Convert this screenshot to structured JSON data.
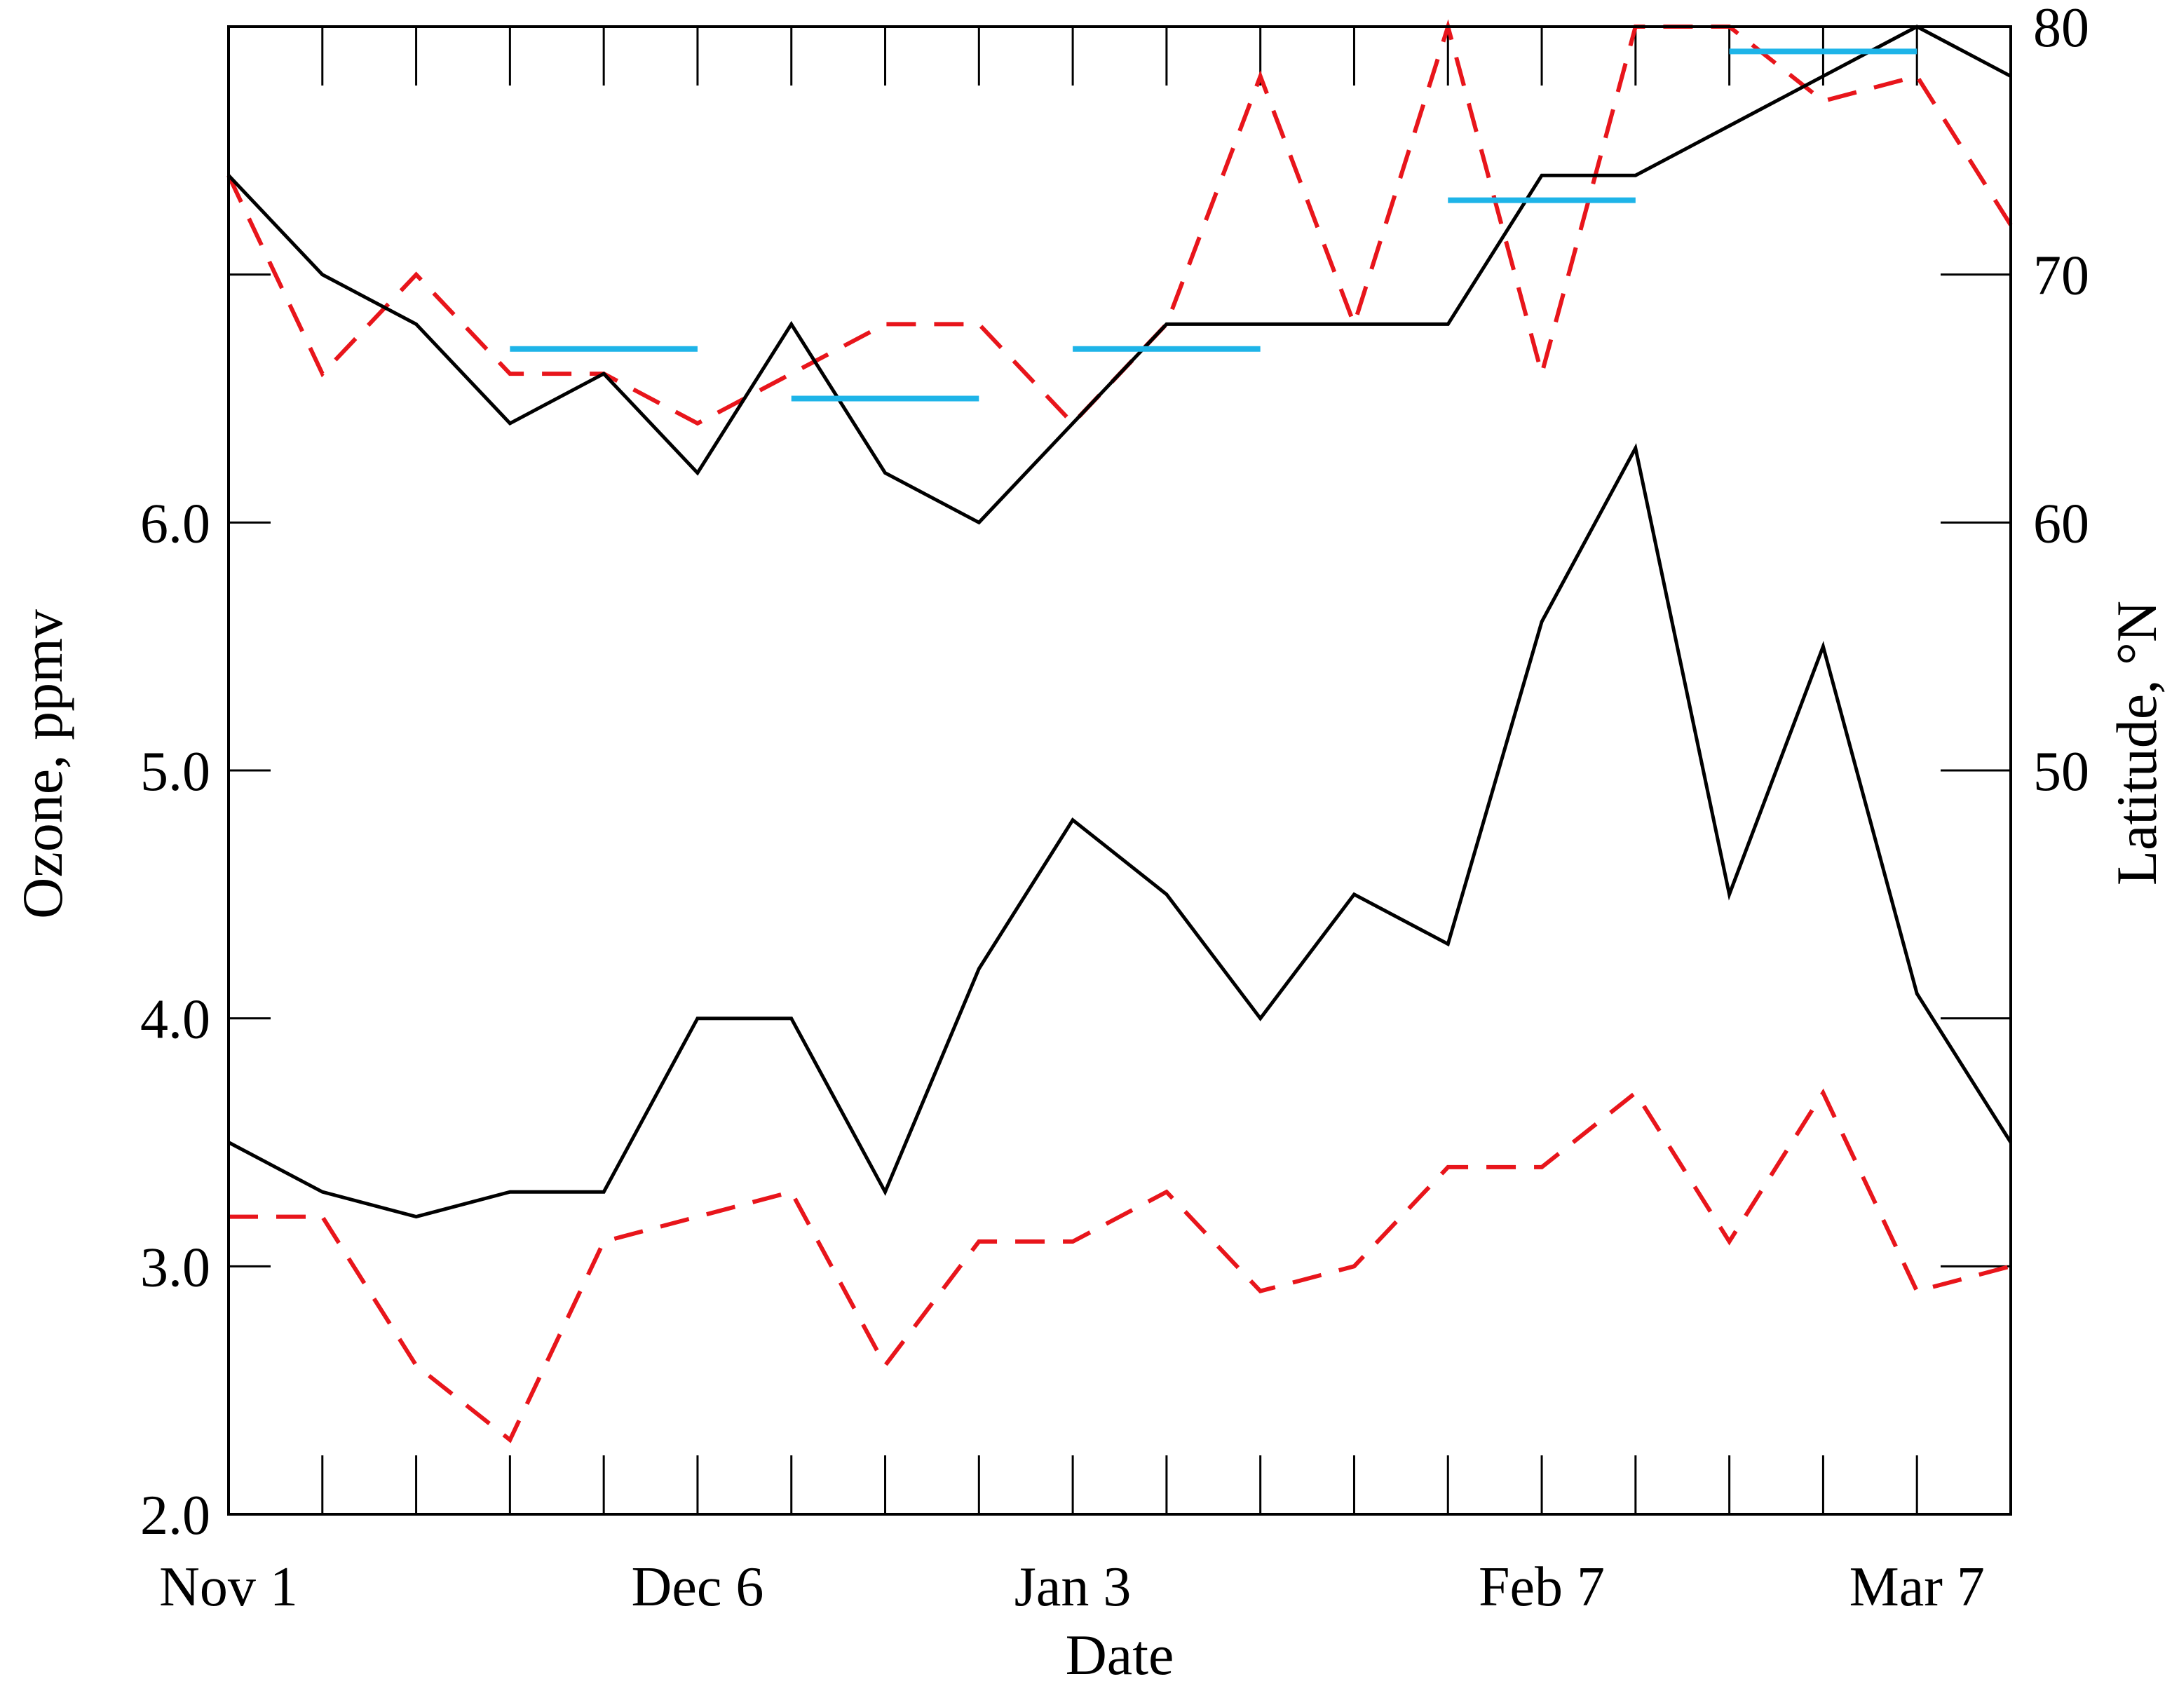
{
  "chart_data": {
    "type": "line",
    "xlabel": "Date",
    "ylabel_left": "Ozone, ppmv",
    "ylabel_right": "Latitude, °N",
    "x_tick_labels": [
      {
        "label": "Nov 1",
        "i": 0
      },
      {
        "label": "Dec 6",
        "i": 5
      },
      {
        "label": "Jan 3",
        "i": 9
      },
      {
        "label": "Feb 7",
        "i": 14
      },
      {
        "label": "Mar 7",
        "i": 18
      }
    ],
    "x_index_range": [
      0,
      19
    ],
    "ylim_left": [
      2.0,
      8.0
    ],
    "yticks_left": [
      "2.0",
      "3.0",
      "4.0",
      "5.0",
      "6.0"
    ],
    "ylim_right": [
      20,
      80
    ],
    "yticks_right": [
      "50",
      "60",
      "70",
      "80"
    ],
    "latitude_black": {
      "axis": "right",
      "style": "solid",
      "color": "#000000",
      "values": [
        74,
        70,
        68,
        64,
        66,
        62,
        68,
        62,
        60,
        64,
        68,
        68,
        68,
        68,
        74,
        74,
        76,
        78,
        80,
        78
      ]
    },
    "latitude_red": {
      "axis": "right",
      "style": "dashed",
      "color": "#e8151b",
      "values": [
        74,
        66,
        70,
        66,
        66,
        64,
        66,
        68,
        68,
        64,
        68,
        78,
        68,
        80,
        66,
        80,
        80,
        77,
        78,
        72
      ]
    },
    "latitude_mean_segments": {
      "axis": "right",
      "color": "#1eb4e8",
      "segments": [
        {
          "i0": 3,
          "i1": 5,
          "value": 67
        },
        {
          "i0": 6,
          "i1": 8,
          "value": 65
        },
        {
          "i0": 9,
          "i1": 11,
          "value": 67
        },
        {
          "i0": 13,
          "i1": 15,
          "value": 73
        },
        {
          "i0": 16,
          "i1": 18,
          "value": 79
        }
      ]
    },
    "ozone_black": {
      "axis": "left",
      "style": "solid",
      "color": "#000000",
      "values": [
        3.5,
        3.3,
        3.2,
        3.3,
        3.3,
        4.0,
        4.0,
        3.3,
        4.2,
        4.8,
        4.5,
        4.0,
        4.5,
        4.3,
        5.6,
        6.3,
        4.5,
        5.5,
        4.1,
        3.5
      ]
    },
    "ozone_red": {
      "axis": "left",
      "style": "dashed",
      "color": "#e8151b",
      "values": [
        3.2,
        3.2,
        2.6,
        2.3,
        3.1,
        3.2,
        3.3,
        2.6,
        3.1,
        3.1,
        3.3,
        2.9,
        3.0,
        3.4,
        3.4,
        3.7,
        3.1,
        3.7,
        2.9,
        3.0
      ]
    }
  }
}
